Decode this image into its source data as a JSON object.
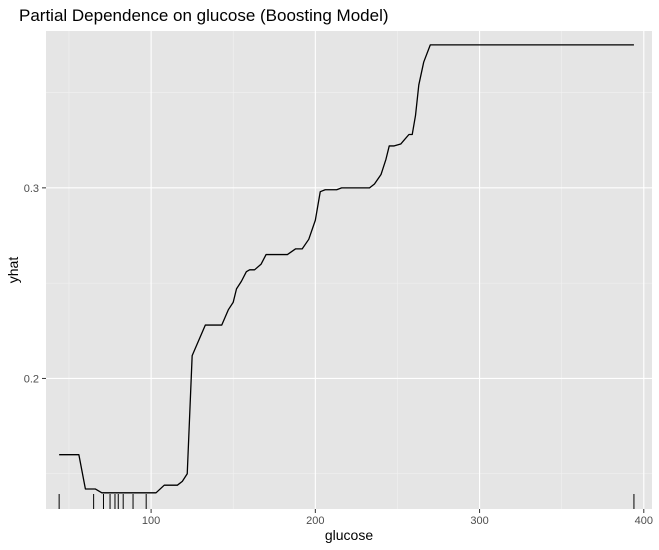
{
  "chart_data": {
    "type": "line",
    "title": "Partial Dependence on glucose (Boosting Model)",
    "xlabel": "glucose",
    "ylabel": "yhat",
    "xlim": [
      36,
      405
    ],
    "ylim": [
      0.1315,
      0.3823
    ],
    "xticks": [
      100,
      200,
      300,
      400
    ],
    "yticks": [
      0.2,
      0.3
    ],
    "ytick_labels": [
      "0.2",
      "0.3"
    ],
    "xminor": [
      50,
      150,
      250,
      350
    ],
    "yminor": [
      0.15,
      0.25,
      0.35
    ],
    "grid": true,
    "legend": "none",
    "colors": {
      "panel": "#e5e5e5",
      "line": "#000000",
      "grid": "#ffffff"
    },
    "series": [
      {
        "x": [
          44,
          56,
          60,
          66,
          70,
          80,
          90,
          100,
          103,
          108,
          116,
          119,
          122,
          125,
          133,
          143,
          147,
          150,
          152,
          155,
          158,
          160,
          163,
          167,
          170,
          173,
          177,
          183,
          188,
          192,
          196,
          200,
          203,
          206,
          208,
          213,
          216,
          220,
          224,
          227,
          230,
          233,
          236,
          240,
          243,
          245,
          248,
          252,
          254,
          257,
          259,
          261,
          263,
          266,
          270,
          290,
          320,
          350,
          380,
          394
        ],
        "y": [
          0.16,
          0.16,
          0.142,
          0.142,
          0.14,
          0.14,
          0.14,
          0.14,
          0.14,
          0.144,
          0.144,
          0.146,
          0.15,
          0.212,
          0.228,
          0.228,
          0.236,
          0.24,
          0.247,
          0.251,
          0.256,
          0.257,
          0.257,
          0.26,
          0.265,
          0.265,
          0.265,
          0.265,
          0.268,
          0.268,
          0.273,
          0.283,
          0.298,
          0.299,
          0.299,
          0.299,
          0.3,
          0.3,
          0.3,
          0.3,
          0.3,
          0.3,
          0.302,
          0.307,
          0.315,
          0.322,
          0.322,
          0.323,
          0.325,
          0.328,
          0.328,
          0.338,
          0.354,
          0.366,
          0.375,
          0.375,
          0.375,
          0.375,
          0.375,
          0.375
        ]
      }
    ],
    "rug_x": [
      44,
      65,
      71,
      75,
      78,
      80,
      83,
      89,
      97,
      394
    ]
  }
}
